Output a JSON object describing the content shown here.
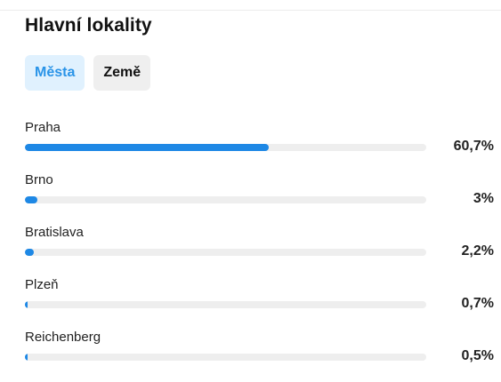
{
  "header": {
    "title": "Hlavní lokality"
  },
  "tabs": [
    {
      "label": "Města",
      "active": true
    },
    {
      "label": "Země",
      "active": false
    }
  ],
  "colors": {
    "accent": "#1e88e5",
    "tab_active_bg": "#e0f1fe",
    "tab_active_text": "#2a94e8",
    "track": "#eeeeee"
  },
  "locations": [
    {
      "name": "Praha",
      "value_label": "60,7%",
      "percent": 60.7
    },
    {
      "name": "Brno",
      "value_label": "3%",
      "percent": 3
    },
    {
      "name": "Bratislava",
      "value_label": "2,2%",
      "percent": 2.2
    },
    {
      "name": "Plzeň",
      "value_label": "0,7%",
      "percent": 0.7
    },
    {
      "name": "Reichenberg",
      "value_label": "0,5%",
      "percent": 0.5
    }
  ]
}
